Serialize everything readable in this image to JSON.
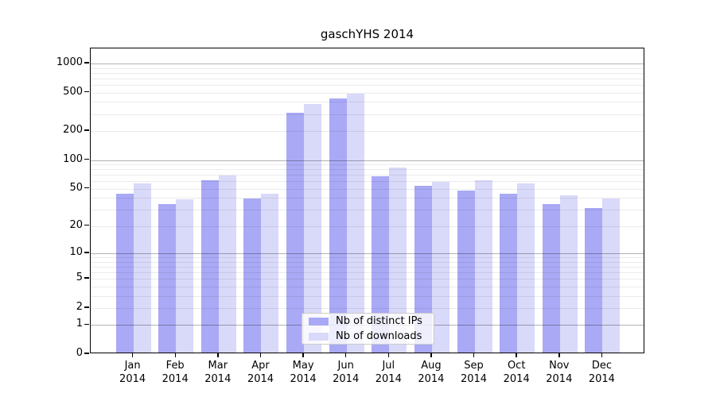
{
  "title": "gaschYHS 2014",
  "chart_data": {
    "type": "bar",
    "title": "gaschYHS 2014",
    "categories": [
      "Jan",
      "Feb",
      "Mar",
      "Apr",
      "May",
      "Jun",
      "Jul",
      "Aug",
      "Sep",
      "Oct",
      "Nov",
      "Dec"
    ],
    "year": "2014",
    "series": [
      {
        "name": "Nb of distinct IPs",
        "color": "#a9a9f5",
        "values": [
          43,
          33,
          59,
          38,
          300,
          420,
          65,
          52,
          46,
          43,
          33,
          30
        ]
      },
      {
        "name": "Nb of downloads",
        "color": "#d9d9f9",
        "values": [
          55,
          37,
          66,
          43,
          370,
          470,
          80,
          57,
          59,
          55,
          41,
          38
        ]
      }
    ],
    "y_scale": "log1p",
    "ylim": [
      0,
      1430
    ],
    "y_ticks": [
      0,
      1,
      2,
      5,
      10,
      20,
      50,
      100,
      200,
      500,
      1000
    ],
    "y_major_gridlines": [
      1,
      10,
      100,
      1000
    ],
    "xlabel": "",
    "ylabel": "",
    "grid": true,
    "legend_position": "lower center"
  },
  "colors": {
    "major_grid": "rgba(0,0,0,0.30)",
    "minor_grid": "rgba(0,0,0,0.08)",
    "axis": "#000000",
    "legend_border": "#cccccc",
    "legend_bg": "rgba(255,255,255,0.8)",
    "text": "#000000",
    "background": "#ffffff"
  }
}
